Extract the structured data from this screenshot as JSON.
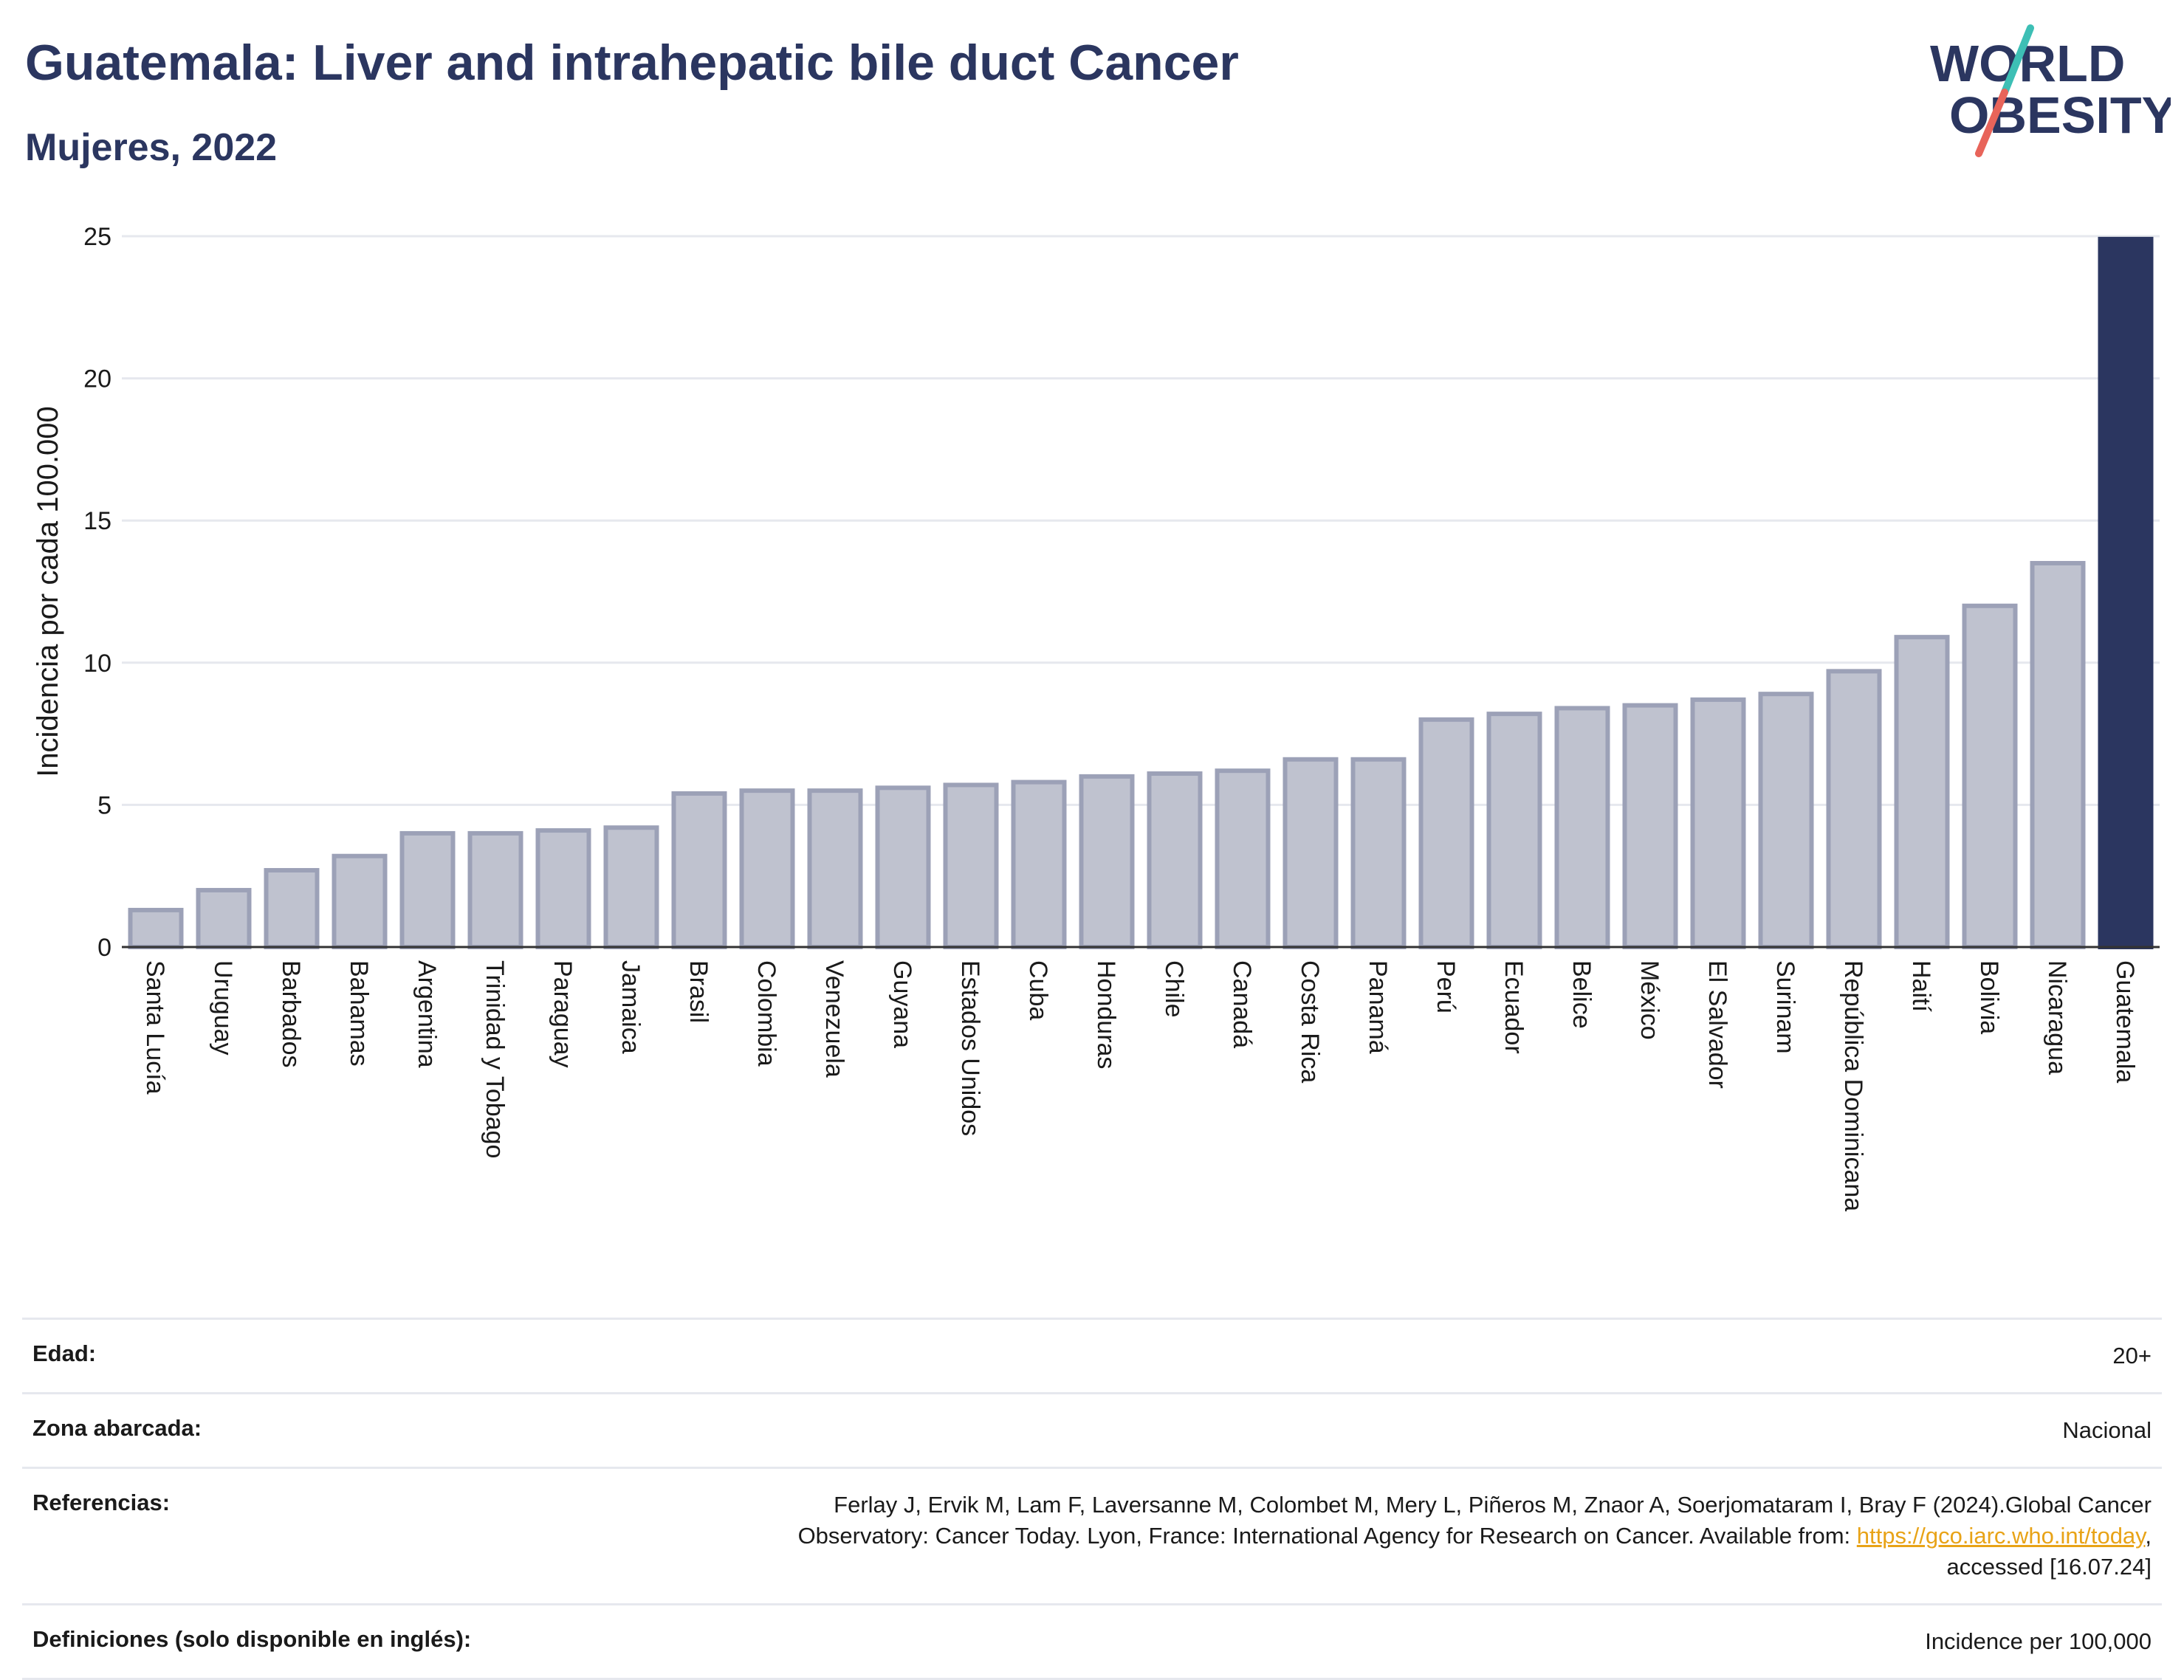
{
  "header": {
    "title": "Guatemala: Liver and intrahepatic bile duct Cancer",
    "subtitle": "Mujeres, 2022"
  },
  "logo": {
    "line1": "WORLD",
    "line2": "OBESITY",
    "colors": {
      "text": "#2b3660",
      "slash_top": "#3dbfb5",
      "slash_bottom": "#e8645a"
    }
  },
  "chart_data": {
    "type": "bar",
    "ylabel": "Incidencia por cada 100.000",
    "ylim": [
      0,
      25
    ],
    "yticks": [
      0,
      5,
      10,
      15,
      20,
      25
    ],
    "grid": true,
    "categories": [
      "Santa Lucía",
      "Uruguay",
      "Barbados",
      "Bahamas",
      "Argentina",
      "Trinidad y Tobago",
      "Paraguay",
      "Jamaica",
      "Brasil",
      "Colombia",
      "Venezuela",
      "Guyana",
      "Estados Unidos",
      "Cuba",
      "Honduras",
      "Chile",
      "Canadá",
      "Costa Rica",
      "Panamá",
      "Perú",
      "Ecuador",
      "Belice",
      "México",
      "El Salvador",
      "Surinam",
      "República Dominicana",
      "Haití",
      "Bolivia",
      "Nicaragua",
      "Guatemala"
    ],
    "values": [
      1.3,
      2.0,
      2.7,
      3.2,
      4.0,
      4.0,
      4.1,
      4.2,
      5.4,
      5.5,
      5.5,
      5.6,
      5.7,
      5.8,
      6.0,
      6.1,
      6.2,
      6.6,
      6.6,
      8.0,
      8.2,
      8.4,
      8.5,
      8.7,
      8.9,
      9.7,
      10.9,
      12.0,
      13.5,
      24.9
    ],
    "highlight": "Guatemala",
    "colors": {
      "bar": "#bfc2cf",
      "bar_border": "#9ca1b7",
      "highlight": "#2b3660",
      "grid": "#e6e8ee",
      "axis": "#333333"
    }
  },
  "info": {
    "age_label": "Edad:",
    "age_value": "20+",
    "zone_label": "Zona abarcada:",
    "zone_value": "Nacional",
    "ref_label": "Referencias:",
    "ref_text_1": "Ferlay J, Ervik M, Lam F, Laversanne M, Colombet M, Mery L, Piñeros M, Znaor A, Soerjomataram I, Bray F (2024).Global Cancer",
    "ref_text_2": "Observatory: Cancer Today. Lyon, France: International Agency for Research on Cancer. Available from: ",
    "ref_link": "https://gco.iarc.who.int/today",
    "ref_text_3": ",",
    "ref_text_4": "accessed [16.07.24]",
    "def_label": "Definiciones (solo disponible en inglés):",
    "def_value": "Incidence per 100,000"
  }
}
